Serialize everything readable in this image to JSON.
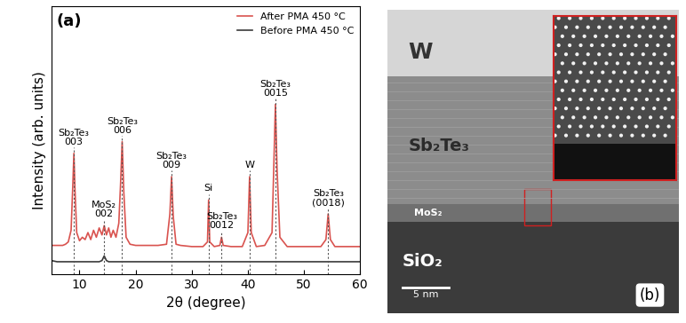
{
  "chart_data": {
    "type": "line",
    "title": "(a)",
    "x_label": "2θ (degree)",
    "y_label": "Intensity (arb. units)",
    "x": [
      5,
      6,
      7,
      7.5,
      8,
      8.5,
      8.8,
      9.0,
      9.2,
      9.5,
      10,
      10.5,
      11,
      11.5,
      12,
      12.5,
      13,
      13.5,
      14,
      14.4,
      14.8,
      15.2,
      15.6,
      16,
      16.5,
      17,
      17.3,
      17.6,
      17.9,
      18.3,
      19,
      20,
      22,
      24,
      25.5,
      26.1,
      26.4,
      26.7,
      27.2,
      28,
      30,
      32,
      32.8,
      33.0,
      33.2,
      34,
      35,
      35.3,
      35.6,
      37,
      39,
      40.0,
      40.3,
      40.6,
      41.5,
      43,
      44.3,
      44.6,
      44.9,
      45.2,
      45.7,
      47,
      49,
      51,
      53,
      53.9,
      54.3,
      54.7,
      55.5,
      57,
      60
    ],
    "series": [
      {
        "name": "After PMA 450 °C",
        "color": "#d9534f",
        "line_style": "solid",
        "values": [
          1.25,
          1.25,
          1.25,
          1.3,
          1.4,
          1.9,
          3.8,
          5.2,
          3.6,
          1.8,
          1.45,
          1.6,
          1.5,
          1.8,
          1.5,
          1.9,
          1.6,
          2.0,
          1.7,
          2.1,
          1.7,
          2.0,
          1.6,
          1.9,
          1.6,
          2.2,
          3.8,
          5.7,
          3.5,
          1.6,
          1.3,
          1.25,
          1.25,
          1.25,
          1.3,
          2.6,
          4.2,
          2.5,
          1.3,
          1.25,
          1.2,
          1.2,
          1.4,
          3.2,
          1.4,
          1.2,
          1.25,
          1.6,
          1.25,
          1.2,
          1.2,
          1.8,
          4.2,
          1.8,
          1.2,
          1.25,
          1.8,
          4.5,
          7.3,
          4.5,
          1.6,
          1.2,
          1.2,
          1.2,
          1.2,
          1.5,
          2.6,
          1.5,
          1.2,
          1.2,
          1.2
        ]
      },
      {
        "name": "Before PMA 450 °C",
        "color": "#3a3a3a",
        "line_style": "solid",
        "values": [
          0.6,
          0.55,
          0.55,
          0.55,
          0.55,
          0.55,
          0.55,
          0.55,
          0.55,
          0.55,
          0.55,
          0.55,
          0.55,
          0.55,
          0.55,
          0.55,
          0.55,
          0.55,
          0.6,
          0.8,
          0.6,
          0.55,
          0.55,
          0.55,
          0.55,
          0.55,
          0.55,
          0.55,
          0.55,
          0.55,
          0.55,
          0.55,
          0.55,
          0.55,
          0.55,
          0.55,
          0.55,
          0.55,
          0.55,
          0.55,
          0.55,
          0.55,
          0.55,
          0.55,
          0.55,
          0.55,
          0.55,
          0.55,
          0.55,
          0.55,
          0.55,
          0.55,
          0.55,
          0.55,
          0.55,
          0.55,
          0.55,
          0.55,
          0.55,
          0.55,
          0.55,
          0.55,
          0.55,
          0.55,
          0.55,
          0.55,
          0.55,
          0.55,
          0.55,
          0.55,
          0.55
        ]
      }
    ],
    "annotations": [
      {
        "text": "Sb₂Te₃\n003",
        "x": 9.0
      },
      {
        "text": "MoS₂\n002",
        "x": 14.4
      },
      {
        "text": "Sb₂Te₃\n006",
        "x": 17.6
      },
      {
        "text": "Sb₂Te₃\n009",
        "x": 26.4
      },
      {
        "text": "Si",
        "x": 33.0
      },
      {
        "text": "Sb₂Te₃\n0012",
        "x": 35.3
      },
      {
        "text": "W",
        "x": 40.3
      },
      {
        "text": "Sb₂Te₃\n0015",
        "x": 44.9
      },
      {
        "text": "Sb₂Te₃\n(0018)",
        "x": 54.3
      }
    ],
    "xlim": [
      5,
      60
    ],
    "xticks": [
      10,
      20,
      30,
      40,
      50,
      60
    ],
    "ylim": [
      0,
      11.5
    ],
    "tick_labels": "x",
    "legend": "upper right",
    "grid": false
  },
  "micrograph": {
    "panel_label": "(b)",
    "layers": [
      {
        "label": "W"
      },
      {
        "label": "Sb₂Te₃"
      },
      {
        "label": "MoS₂"
      },
      {
        "label": "SiO₂"
      }
    ],
    "scale_bar": "5 nm"
  }
}
